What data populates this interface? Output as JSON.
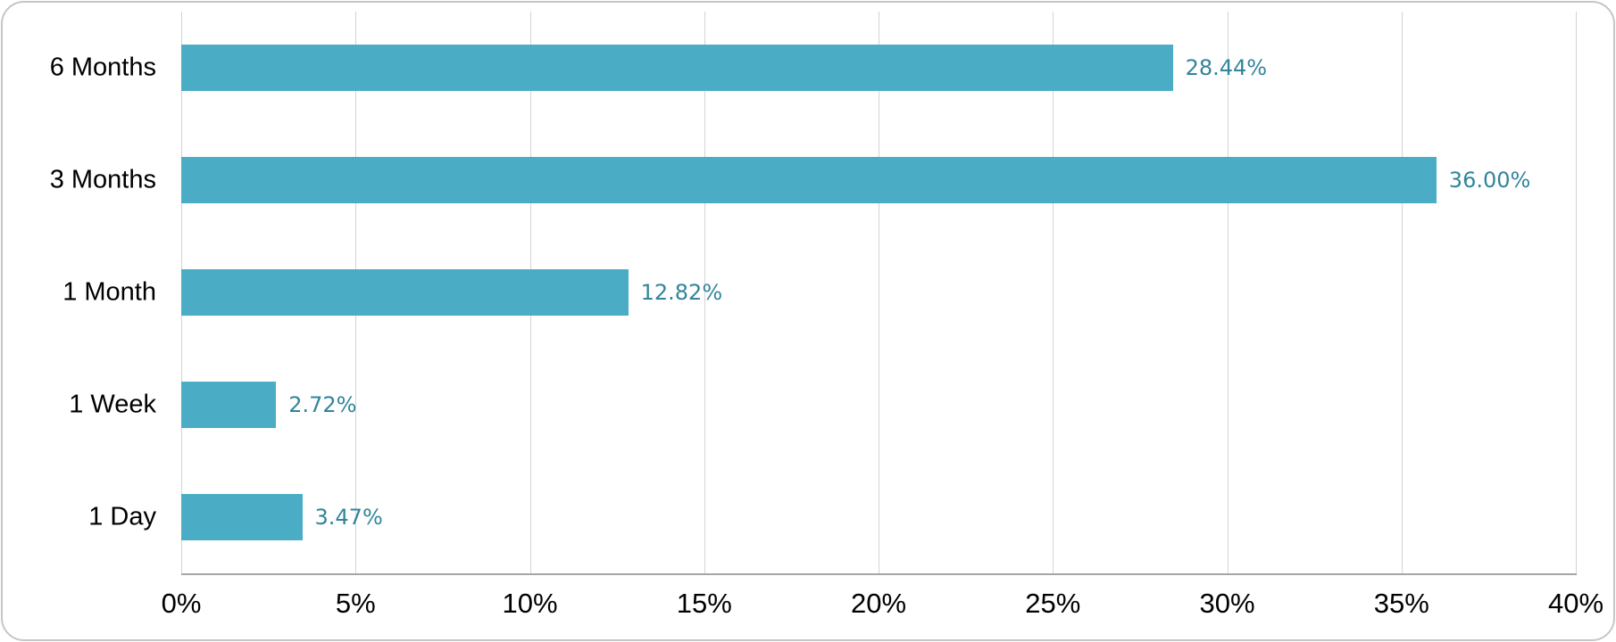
{
  "chart_data": {
    "type": "bar",
    "orientation": "horizontal",
    "title": "",
    "xlabel": "",
    "ylabel": "",
    "categories": [
      "6 Months",
      "3 Months",
      "1 Month",
      "1 Week",
      "1 Day"
    ],
    "values": [
      28.44,
      36.0,
      12.82,
      2.72,
      3.47
    ],
    "data_labels": [
      "28.44%",
      "36.00%",
      "12.82%",
      "2.72%",
      "3.47%"
    ],
    "x_axis": {
      "min": 0,
      "max": 40,
      "step": 5,
      "tick_labels": [
        "0%",
        "5%",
        "10%",
        "15%",
        "20%",
        "25%",
        "30%",
        "35%",
        "40%"
      ]
    },
    "legend": "none",
    "grid": "vertical-major",
    "colors": {
      "bar_fill": "#4BACC6",
      "data_label_text": "#31859B",
      "gridline": "#D4D4D4",
      "axis_line": "#A6A6A6",
      "category_text": "#000000",
      "tick_text": "#000000",
      "chart_border": "#C6C6C6",
      "background": "#FFFFFF"
    }
  }
}
